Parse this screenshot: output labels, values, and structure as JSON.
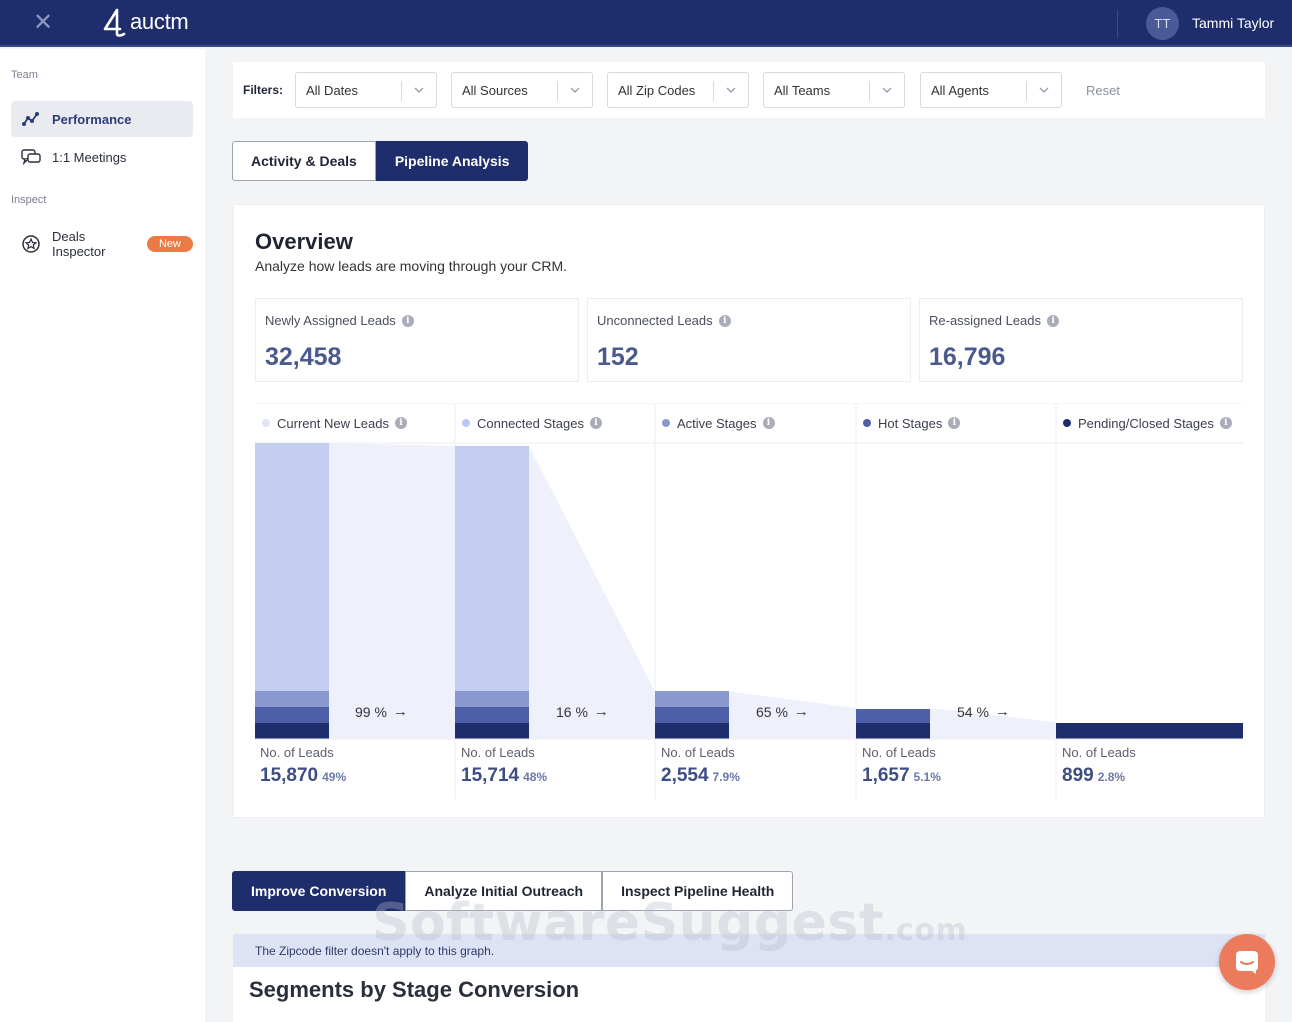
{
  "topbar": {
    "logo_text": "auctm",
    "avatar_initials": "TT",
    "user_name": "Tammi Taylor"
  },
  "sidebar": {
    "sections": [
      {
        "title": "Team",
        "items": [
          {
            "label": "Performance",
            "icon": "performance-icon",
            "active": true
          },
          {
            "label": "1:1 Meetings",
            "icon": "chat-bubbles-icon"
          }
        ]
      },
      {
        "title": "Inspect",
        "items": [
          {
            "label": "Deals Inspector",
            "icon": "star-badge-icon",
            "badge": "New"
          }
        ]
      }
    ]
  },
  "filters": {
    "label": "Filters:",
    "selects": [
      "All Dates",
      "All Sources",
      "All Zip Codes",
      "All Teams",
      "All Agents"
    ],
    "reset_label": "Reset"
  },
  "tabs": [
    {
      "label": "Activity & Deals",
      "active": false
    },
    {
      "label": "Pipeline Analysis",
      "active": true
    }
  ],
  "overview": {
    "title": "Overview",
    "subtitle": "Analyze how leads are moving through your CRM.",
    "stats": [
      {
        "label": "Newly Assigned Leads",
        "value": "32,458"
      },
      {
        "label": "Unconnected Leads",
        "value": "152"
      },
      {
        "label": "Re-assigned Leads",
        "value": "16,796"
      }
    ]
  },
  "funnel": {
    "foot_label": "No. of Leads",
    "stages": [
      {
        "name": "Current New Leads",
        "dot_color": "#dfe5f7",
        "leads": "15,870",
        "share": "49%",
        "conversion": "99 %"
      },
      {
        "name": "Connected Stages",
        "dot_color": "#b9c6ef",
        "leads": "15,714",
        "share": "48%",
        "conversion": "16 %"
      },
      {
        "name": "Active Stages",
        "dot_color": "#8a98d0",
        "leads": "2,554",
        "share": "7.9%",
        "conversion": "65 %"
      },
      {
        "name": "Hot Stages",
        "dot_color": "#4c5fa8",
        "leads": "1,657",
        "share": "5.1%",
        "conversion": "54 %"
      },
      {
        "name": "Pending/Closed Stages",
        "dot_color": "#1e2d6b",
        "leads": "899",
        "share": "2.8%",
        "conversion": ""
      }
    ],
    "colors": {
      "light": "#c3cdf0",
      "mid": "#8a98d0",
      "dark": "#4c5fa8",
      "darkest": "#1e2d6b",
      "flow": "#eef1fb"
    }
  },
  "bottom_tabs": [
    {
      "label": "Improve Conversion",
      "active": true
    },
    {
      "label": "Analyze Initial Outreach",
      "active": false
    },
    {
      "label": "Inspect Pipeline Health",
      "active": false
    }
  ],
  "notice": "The Zipcode filter doesn't apply to this graph.",
  "segments_title": "Segments by Stage Conversion",
  "watermark": {
    "main": "SoftwareSuggest",
    "suffix": ".com"
  }
}
